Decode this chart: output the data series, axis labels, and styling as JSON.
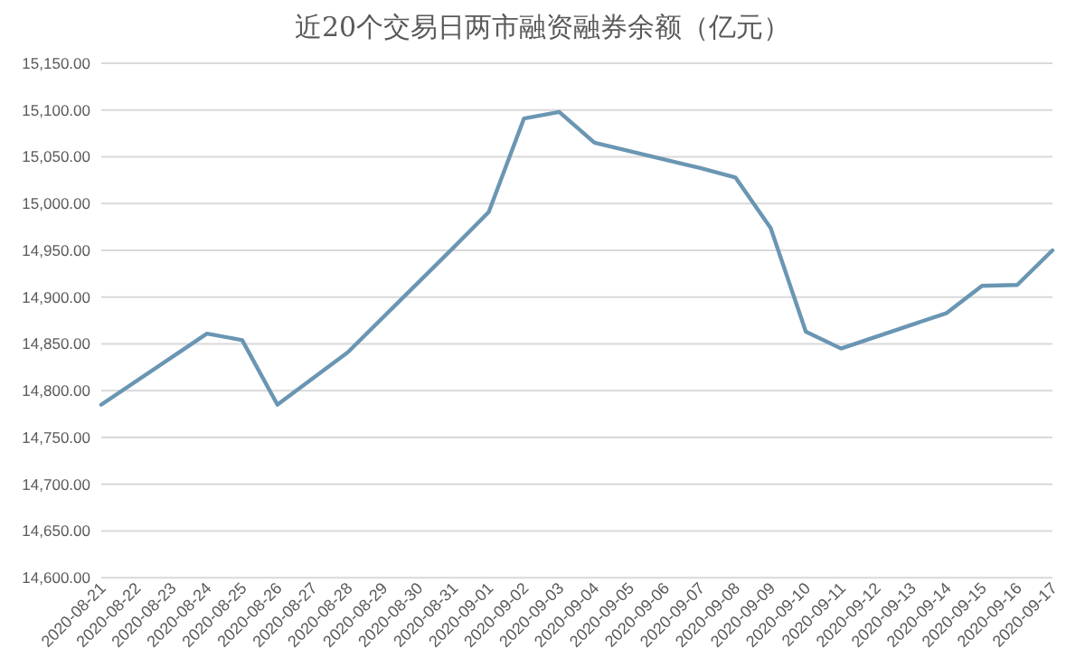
{
  "chart_data": {
    "type": "line",
    "title": "近20个交易日两市融资融券余额（亿元）",
    "x": [
      "2020-08-21",
      "2020-08-24",
      "2020-08-25",
      "2020-08-26",
      "2020-08-27",
      "2020-08-28",
      "2020-08-31",
      "2020-09-01",
      "2020-09-02",
      "2020-09-03",
      "2020-09-04",
      "2020-09-07",
      "2020-09-08",
      "2020-09-09",
      "2020-09-10",
      "2020-09-11",
      "2020-09-14",
      "2020-09-15",
      "2020-09-16",
      "2020-09-17"
    ],
    "series": [
      {
        "color": "#6a96b3",
        "values": [
          14785,
          14861,
          14854,
          14785,
          14813,
          14841,
          14953,
          14991,
          15091,
          15098,
          15065,
          15038,
          15028,
          14974,
          14863,
          14845,
          14883,
          14912,
          14913,
          14950
        ]
      }
    ],
    "xlim": [
      "2020-08-21",
      "2020-09-17"
    ],
    "xticks": [
      "2020-08-21",
      "2020-08-22",
      "2020-08-23",
      "2020-08-24",
      "2020-08-25",
      "2020-08-26",
      "2020-08-27",
      "2020-08-28",
      "2020-08-29",
      "2020-08-30",
      "2020-08-31",
      "2020-09-01",
      "2020-09-02",
      "2020-09-03",
      "2020-09-04",
      "2020-09-05",
      "2020-09-06",
      "2020-09-07",
      "2020-09-08",
      "2020-09-09",
      "2020-09-10",
      "2020-09-11",
      "2020-09-12",
      "2020-09-13",
      "2020-09-14",
      "2020-09-15",
      "2020-09-16",
      "2020-09-17"
    ],
    "ylim": [
      14600,
      15150
    ],
    "yticks": [
      {
        "value": 14600,
        "label": "14,600.00"
      },
      {
        "value": 14650,
        "label": "14,650.00"
      },
      {
        "value": 14700,
        "label": "14,700.00"
      },
      {
        "value": 14750,
        "label": "14,750.00"
      },
      {
        "value": 14800,
        "label": "14,800.00"
      },
      {
        "value": 14850,
        "label": "14,850.00"
      },
      {
        "value": 14900,
        "label": "14,900.00"
      },
      {
        "value": 14950,
        "label": "14,950.00"
      },
      {
        "value": 15000,
        "label": "15,000.00"
      },
      {
        "value": 15050,
        "label": "15,050.00"
      },
      {
        "value": 15100,
        "label": "15,100.00"
      },
      {
        "value": 15150,
        "label": "15,150.00"
      }
    ],
    "grid": "y",
    "marker": "none",
    "line_style": "solid"
  }
}
